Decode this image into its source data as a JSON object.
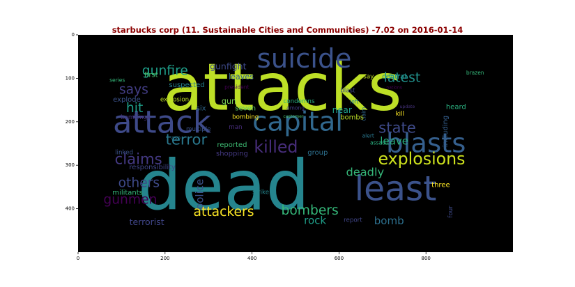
{
  "chart_data": {
    "type": "wordcloud",
    "title": "starbucks corp (11. Sustainable Cities and Communities) -7.02 on 2016-01-14",
    "xlim": [
      0,
      1000
    ],
    "ylim": [
      0,
      500
    ],
    "x_ticks": [
      "0",
      "200",
      "400",
      "600",
      "800"
    ],
    "y_ticks": [
      "0",
      "100",
      "200",
      "300",
      "400"
    ],
    "background": "#000000",
    "words": [
      {
        "text": "attacks",
        "x": 470,
        "y": 122,
        "size": 150,
        "color": "#bddf26"
      },
      {
        "text": "dead",
        "x": 335,
        "y": 348,
        "size": 158,
        "color": "#25858e"
      },
      {
        "text": "attack",
        "x": 193,
        "y": 200,
        "size": 72,
        "color": "#3e4a89"
      },
      {
        "text": "suicide",
        "x": 520,
        "y": 55,
        "size": 62,
        "color": "#3b528b"
      },
      {
        "text": "capital",
        "x": 505,
        "y": 200,
        "size": 62,
        "color": "#31688e"
      },
      {
        "text": "blasts",
        "x": 800,
        "y": 250,
        "size": 62,
        "color": "#355f8d"
      },
      {
        "text": "least",
        "x": 730,
        "y": 355,
        "size": 78,
        "color": "#3b528b"
      },
      {
        "text": "explosions",
        "x": 790,
        "y": 285,
        "size": 38,
        "color": "#cde11d"
      },
      {
        "text": "gunfire",
        "x": 200,
        "y": 83,
        "size": 30,
        "color": "#1f9e89"
      },
      {
        "text": "latest",
        "x": 745,
        "y": 99,
        "size": 30,
        "color": "#21918c"
      },
      {
        "text": "says",
        "x": 128,
        "y": 127,
        "size": 30,
        "color": "#433e85"
      },
      {
        "text": "hit",
        "x": 130,
        "y": 169,
        "size": 30,
        "color": "#1f9e89"
      },
      {
        "text": "terror",
        "x": 249,
        "y": 240,
        "size": 34,
        "color": "#2a788e"
      },
      {
        "text": "killed",
        "x": 455,
        "y": 258,
        "size": 38,
        "color": "#472d7b"
      },
      {
        "text": "state",
        "x": 734,
        "y": 213,
        "size": 34,
        "color": "#3e4a89"
      },
      {
        "text": "leave",
        "x": 727,
        "y": 244,
        "size": 24,
        "color": "#2ab07f"
      },
      {
        "text": "claims",
        "x": 139,
        "y": 285,
        "size": 34,
        "color": "#443983"
      },
      {
        "text": "deadly",
        "x": 660,
        "y": 316,
        "size": 26,
        "color": "#35b779"
      },
      {
        "text": "others",
        "x": 140,
        "y": 341,
        "size": 30,
        "color": "#3e4a89"
      },
      {
        "text": "gunmen",
        "x": 120,
        "y": 380,
        "size": 30,
        "color": "#440154"
      },
      {
        "text": "police",
        "x": 280,
        "y": 367,
        "size": 24,
        "color": "#3b528b",
        "rotate": -90
      },
      {
        "text": "attackers",
        "x": 335,
        "y": 408,
        "size": 30,
        "color": "#fde725"
      },
      {
        "text": "bombers",
        "x": 533,
        "y": 405,
        "size": 30,
        "color": "#35b779"
      },
      {
        "text": "rock",
        "x": 545,
        "y": 427,
        "size": 24,
        "color": "#1f9e89"
      },
      {
        "text": "bomb",
        "x": 715,
        "y": 428,
        "size": 24,
        "color": "#2d708e"
      },
      {
        "text": "terrorist",
        "x": 158,
        "y": 430,
        "size": 20,
        "color": "#404688"
      },
      {
        "text": "gunfight",
        "x": 345,
        "y": 72,
        "size": 20,
        "color": "#3e4a89"
      },
      {
        "text": "leaves",
        "x": 375,
        "y": 97,
        "size": 18,
        "color": "#34618d"
      },
      {
        "text": "suspected",
        "x": 250,
        "y": 116,
        "size": 16,
        "color": "#26828e"
      },
      {
        "text": "first",
        "x": 168,
        "y": 93,
        "size": 16,
        "color": "#4ac16d"
      },
      {
        "text": "series",
        "x": 90,
        "y": 104,
        "size": 12,
        "color": "#35b779"
      },
      {
        "text": "president",
        "x": 365,
        "y": 120,
        "size": 12,
        "color": "#440154"
      },
      {
        "text": "explode",
        "x": 112,
        "y": 150,
        "size": 16,
        "color": "#3b528b"
      },
      {
        "text": "explosion",
        "x": 222,
        "y": 150,
        "size": 14,
        "color": "#bddf26"
      },
      {
        "text": "six",
        "x": 283,
        "y": 170,
        "size": 16,
        "color": "#31688e"
      },
      {
        "text": "gun",
        "x": 347,
        "y": 153,
        "size": 18,
        "color": "#7ad151"
      },
      {
        "text": "seven",
        "x": 385,
        "y": 170,
        "size": 16,
        "color": "#5ec962"
      },
      {
        "text": "bombing",
        "x": 385,
        "y": 190,
        "size": 14,
        "color": "#fde725"
      },
      {
        "text": "condemns",
        "x": 508,
        "y": 154,
        "size": 14,
        "color": "#2ab07f"
      },
      {
        "text": "among",
        "x": 500,
        "y": 168,
        "size": 12,
        "color": "#433e85"
      },
      {
        "text": "customer",
        "x": 495,
        "y": 188,
        "size": 10,
        "color": "#4ac16d"
      },
      {
        "text": "blast",
        "x": 620,
        "y": 129,
        "size": 14,
        "color": "#3e4a89"
      },
      {
        "text": "nations",
        "x": 727,
        "y": 122,
        "size": 10,
        "color": "#440154"
      },
      {
        "text": "say",
        "x": 668,
        "y": 97,
        "size": 14,
        "color": "#bddf26"
      },
      {
        "text": "central",
        "x": 727,
        "y": 97,
        "size": 16,
        "color": "#21918c"
      },
      {
        "text": "brazen",
        "x": 913,
        "y": 87,
        "size": 12,
        "color": "#35b779"
      },
      {
        "text": "near",
        "x": 607,
        "y": 172,
        "size": 20,
        "color": "#1f9e89"
      },
      {
        "text": "left",
        "x": 635,
        "y": 154,
        "size": 12,
        "color": "#26828e"
      },
      {
        "text": "claim",
        "x": 657,
        "y": 182,
        "size": 12,
        "color": "#31688e",
        "rotate": -90
      },
      {
        "text": "bombs",
        "x": 630,
        "y": 191,
        "size": 16,
        "color": "#bddf26"
      },
      {
        "text": "update",
        "x": 757,
        "y": 166,
        "size": 10,
        "color": "#46337e"
      },
      {
        "text": "kill",
        "x": 740,
        "y": 183,
        "size": 14,
        "color": "#fde725"
      },
      {
        "text": "heard",
        "x": 869,
        "y": 167,
        "size": 16,
        "color": "#2ab07f"
      },
      {
        "text": "bombings",
        "x": 132,
        "y": 191,
        "size": 14,
        "color": "#46337e"
      },
      {
        "text": "man",
        "x": 362,
        "y": 213,
        "size": 14,
        "color": "#472d7b"
      },
      {
        "text": "multiple",
        "x": 277,
        "y": 218,
        "size": 14,
        "color": "#3b528b"
      },
      {
        "text": "asp",
        "x": 225,
        "y": 237,
        "size": 12,
        "color": "#2a788e"
      },
      {
        "text": "including",
        "x": 845,
        "y": 222,
        "size": 16,
        "color": "#355f8d",
        "rotate": -90
      },
      {
        "text": "alert",
        "x": 667,
        "y": 232,
        "size": 12,
        "color": "#2a788e"
      },
      {
        "text": "assault",
        "x": 693,
        "y": 248,
        "size": 12,
        "color": "#2ab07f"
      },
      {
        "text": "reported",
        "x": 354,
        "y": 254,
        "size": 16,
        "color": "#3ebc73"
      },
      {
        "text": "group",
        "x": 551,
        "y": 272,
        "size": 16,
        "color": "#2d708e"
      },
      {
        "text": "shopping",
        "x": 354,
        "y": 274,
        "size": 16,
        "color": "#443983"
      },
      {
        "text": "linked",
        "x": 106,
        "y": 272,
        "size": 14,
        "color": "#3b528b"
      },
      {
        "text": "responsibility",
        "x": 171,
        "y": 305,
        "size": 16,
        "color": "#404688"
      },
      {
        "text": "militants",
        "x": 114,
        "y": 364,
        "size": 16,
        "color": "#35b779"
      },
      {
        "text": "strike",
        "x": 420,
        "y": 363,
        "size": 14,
        "color": "#24868e"
      },
      {
        "text": "three",
        "x": 834,
        "y": 346,
        "size": 16,
        "color": "#fde725"
      },
      {
        "text": "four",
        "x": 857,
        "y": 407,
        "size": 14,
        "color": "#3e4a89",
        "rotate": -90
      },
      {
        "text": "report",
        "x": 632,
        "y": 427,
        "size": 14,
        "color": "#404688"
      }
    ]
  }
}
